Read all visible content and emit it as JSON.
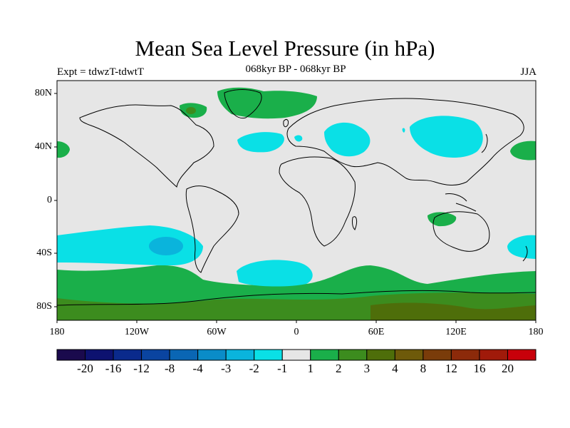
{
  "map": {
    "title": "Mean Sea Level Pressure (in hPa)",
    "expt_label": "Expt = tdwzT-tdwtT",
    "period_label": "068kyr BP - 068kyr BP",
    "season_label": "JJA",
    "lat_ticks": [
      "80N",
      "40N",
      "0",
      "40S",
      "80S"
    ],
    "lon_ticks": [
      "180",
      "120W",
      "60W",
      "0",
      "60E",
      "120E",
      "180"
    ],
    "background_color": "#e6e6e6",
    "coastline_color": "#000000"
  },
  "colorbar": {
    "colors": [
      "#1a0a4d",
      "#0d1270",
      "#0a2a8c",
      "#0a44a0",
      "#0a66b4",
      "#0a8cc8",
      "#0ab4dc",
      "#0ae0e6",
      "#e6e6e6",
      "#1aaf4a",
      "#3c8c1e",
      "#4e6e0a",
      "#6e5a0a",
      "#7a3c0a",
      "#8c2a0a",
      "#a01a0a",
      "#c8000a"
    ],
    "labels": [
      "-20",
      "-16",
      "-12",
      "-8",
      "-4",
      "-3",
      "-2",
      "-1",
      "1",
      "2",
      "3",
      "4",
      "8",
      "12",
      "16",
      "20"
    ]
  }
}
